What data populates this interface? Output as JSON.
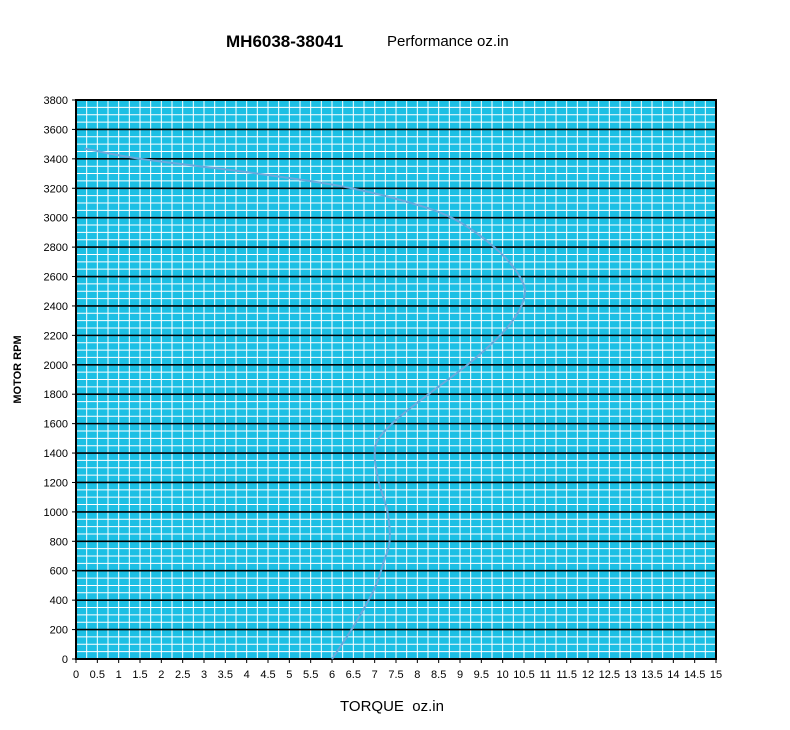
{
  "chart_data": {
    "type": "line",
    "title": "MH6038-38041",
    "subtitle": "Performance oz.in",
    "xlabel": "TORQUE  oz.in",
    "ylabel": "MOTOR RPM",
    "xlim": [
      0,
      15
    ],
    "ylim": [
      0,
      3800
    ],
    "x_ticks": [
      "0",
      "0.5",
      "1",
      "1.5",
      "2",
      "2.5",
      "3",
      "3.5",
      "4",
      "4.5",
      "5",
      "5.5",
      "6",
      "6.5",
      "7",
      "7.5",
      "8",
      "8.5",
      "9",
      "9.5",
      "10",
      "10.5",
      "11",
      "11.5",
      "12",
      "12.5",
      "13",
      "13.5",
      "14",
      "14.5",
      "15"
    ],
    "y_ticks": [
      "0",
      "200",
      "400",
      "600",
      "800",
      "1000",
      "1200",
      "1400",
      "1600",
      "1800",
      "2000",
      "2200",
      "2400",
      "2600",
      "2800",
      "3000",
      "3200",
      "3400",
      "3600",
      "3800"
    ],
    "grid": true,
    "legend": "none",
    "colors": {
      "plot_background": "#1cbfe4",
      "grid_major": "#000000",
      "grid_minor": "#ffffff",
      "curve": "#6aa9dc"
    },
    "series": [
      {
        "x": [
          6.0,
          6.5,
          7.0,
          7.2,
          7.35,
          7.3,
          7.1,
          7.0,
          7.1,
          7.6,
          8.4,
          9.3,
          10.1,
          10.5,
          10.4,
          9.8,
          8.8,
          7.6,
          6.1,
          4.0,
          1.5,
          0.2
        ],
        "y": [
          0,
          220,
          480,
          650,
          800,
          1000,
          1200,
          1380,
          1500,
          1650,
          1830,
          2030,
          2250,
          2450,
          2600,
          2800,
          3000,
          3120,
          3220,
          3310,
          3400,
          3470
        ]
      }
    ]
  }
}
